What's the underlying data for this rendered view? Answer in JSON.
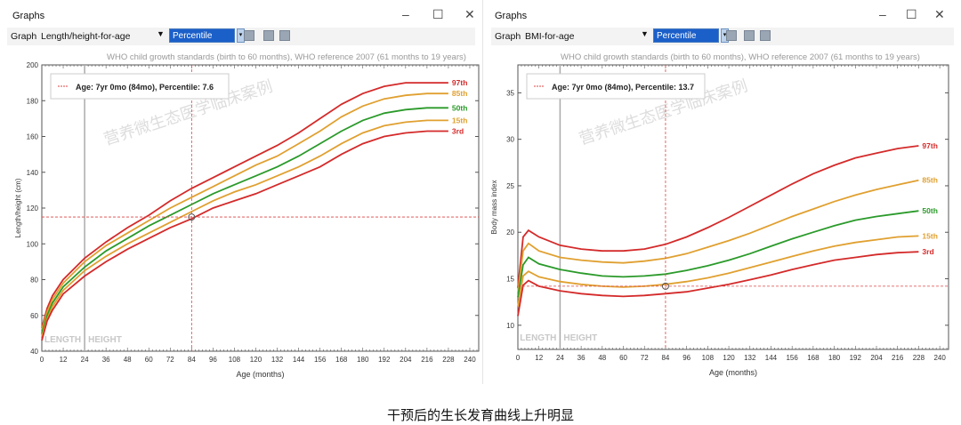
{
  "caption": "干预后的生长发育曲线上升明显",
  "watermark": "营养微生态医学临床案例",
  "windows": [
    {
      "title": "Graphs",
      "graph_label": "Graph",
      "graph_name": "Length/height-for-age",
      "mode": "Percentile",
      "subtitle": "WHO child growth standards (birth to 60 months), WHO reference 2007 (61 months to 19 years)",
      "legend": "Age: 7yr 0mo (84mo), Percentile: 7.6",
      "regions": [
        "LENGTH",
        "HEIGHT"
      ]
    },
    {
      "title": "Graphs",
      "graph_label": "Graph",
      "graph_name": "BMI-for-age",
      "mode": "Percentile",
      "subtitle": "WHO child growth standards (birth to 60 months), WHO reference 2007 (61 months to 19 years)",
      "legend": "Age: 7yr 0mo (84mo), Percentile: 13.7",
      "regions": [
        "LENGTH",
        "HEIGHT"
      ]
    }
  ],
  "chart_data": [
    {
      "type": "line",
      "xlabel": "Age (months)",
      "ylabel": "Length/height (cm)",
      "xlim": [
        0,
        245
      ],
      "ylim": [
        40,
        200
      ],
      "xticks": [
        0,
        12,
        24,
        36,
        48,
        60,
        72,
        84,
        96,
        108,
        120,
        132,
        144,
        156,
        168,
        180,
        192,
        204,
        216,
        228,
        240
      ],
      "yticks": [
        40,
        60,
        80,
        100,
        120,
        140,
        160,
        180,
        200
      ],
      "x": [
        0,
        3,
        6,
        12,
        24,
        36,
        48,
        60,
        72,
        84,
        96,
        108,
        120,
        132,
        144,
        156,
        168,
        180,
        192,
        204,
        216,
        228
      ],
      "series": [
        {
          "name": "97th",
          "color": "#d42a2a",
          "values": [
            53,
            64,
            71,
            80,
            92,
            101,
            109,
            116,
            124,
            131,
            137,
            143,
            149,
            155,
            162,
            170,
            178,
            184,
            188,
            190,
            190,
            190
          ]
        },
        {
          "name": "85th",
          "color": "#e0a030",
          "values": [
            52,
            62,
            69,
            78,
            90,
            99,
            106,
            113,
            120,
            126,
            132,
            138,
            144,
            149,
            156,
            163,
            171,
            177,
            181,
            183,
            184,
            184
          ]
        },
        {
          "name": "50th",
          "color": "#2a9a2a",
          "values": [
            50,
            60,
            67,
            76,
            87,
            96,
            103,
            110,
            116,
            122,
            128,
            133,
            138,
            143,
            149,
            156,
            163,
            169,
            173,
            175,
            176,
            176
          ]
        },
        {
          "name": "15th",
          "color": "#e0a030",
          "values": [
            48,
            58,
            65,
            74,
            85,
            93,
            100,
            106,
            112,
            118,
            124,
            129,
            133,
            138,
            143,
            149,
            156,
            162,
            166,
            168,
            169,
            169
          ]
        },
        {
          "name": "3rd",
          "color": "#d42a2a",
          "values": [
            46,
            57,
            63,
            72,
            82,
            90,
            97,
            103,
            109,
            114,
            120,
            124,
            128,
            133,
            138,
            143,
            150,
            156,
            160,
            162,
            163,
            163
          ]
        }
      ],
      "point": {
        "x": 84,
        "y": 115
      },
      "divider_x": 24
    },
    {
      "type": "line",
      "xlabel": "Age (months)",
      "ylabel": "Body mass index",
      "xlim": [
        0,
        245
      ],
      "ylim": [
        7.4,
        38
      ],
      "xticks": [
        0,
        12,
        24,
        36,
        48,
        60,
        72,
        84,
        96,
        108,
        120,
        132,
        144,
        156,
        168,
        180,
        192,
        204,
        216,
        228,
        240
      ],
      "yticks": [
        10,
        15,
        20,
        25,
        30,
        35
      ],
      "x": [
        0,
        3,
        6,
        12,
        24,
        36,
        48,
        60,
        72,
        84,
        96,
        108,
        120,
        132,
        144,
        156,
        168,
        180,
        192,
        204,
        216,
        228
      ],
      "series": [
        {
          "name": "97th",
          "color": "#d42a2a",
          "values": [
            14,
            19.5,
            20.2,
            19.5,
            18.6,
            18.2,
            18,
            18,
            18.2,
            18.7,
            19.5,
            20.5,
            21.6,
            22.8,
            24,
            25.2,
            26.3,
            27.2,
            28,
            28.5,
            29,
            29.3
          ]
        },
        {
          "name": "85th",
          "color": "#e0a030",
          "values": [
            13.5,
            18,
            18.8,
            18,
            17.3,
            17,
            16.8,
            16.7,
            16.9,
            17.2,
            17.7,
            18.4,
            19.1,
            19.9,
            20.8,
            21.7,
            22.5,
            23.3,
            24,
            24.6,
            25.1,
            25.6
          ]
        },
        {
          "name": "50th",
          "color": "#2a9a2a",
          "values": [
            13,
            16.5,
            17.3,
            16.6,
            16,
            15.6,
            15.3,
            15.2,
            15.3,
            15.5,
            15.9,
            16.4,
            17,
            17.7,
            18.5,
            19.3,
            20,
            20.7,
            21.3,
            21.7,
            22,
            22.3
          ]
        },
        {
          "name": "15th",
          "color": "#e0a030",
          "values": [
            12,
            15.3,
            15.8,
            15.2,
            14.7,
            14.4,
            14.2,
            14.1,
            14.2,
            14.4,
            14.7,
            15.1,
            15.6,
            16.2,
            16.8,
            17.4,
            18,
            18.5,
            18.9,
            19.2,
            19.5,
            19.6
          ]
        },
        {
          "name": "3rd",
          "color": "#d42a2a",
          "values": [
            11,
            14.3,
            14.8,
            14.2,
            13.7,
            13.4,
            13.2,
            13.1,
            13.2,
            13.4,
            13.6,
            14,
            14.4,
            14.9,
            15.4,
            16,
            16.5,
            17,
            17.3,
            17.6,
            17.8,
            17.9
          ]
        }
      ],
      "point": {
        "x": 84,
        "y": 14.2
      },
      "divider_x": 24
    }
  ]
}
